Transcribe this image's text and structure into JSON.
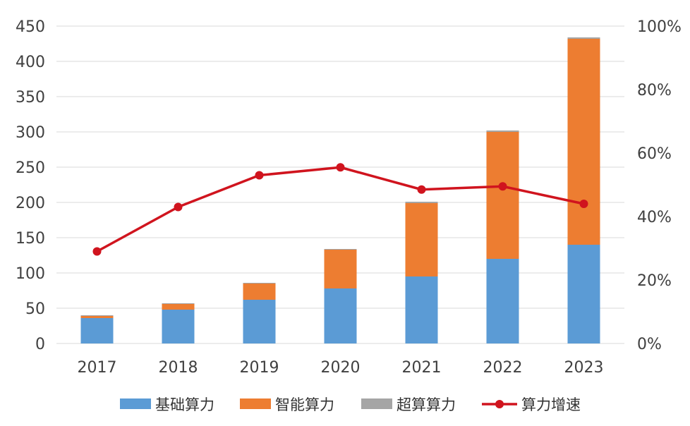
{
  "chart_data": {
    "type": "bar",
    "stacked": true,
    "categories": [
      "2017",
      "2018",
      "2019",
      "2020",
      "2021",
      "2022",
      "2023"
    ],
    "series": [
      {
        "name": "基础算力",
        "kind": "bar",
        "axis": "left",
        "color": "#5b9bd5",
        "values": [
          36,
          48,
          62,
          78,
          95,
          120,
          140
        ]
      },
      {
        "name": "智能算力",
        "kind": "bar",
        "axis": "left",
        "color": "#ed7d31",
        "values": [
          3,
          8,
          23,
          55,
          104,
          180,
          292
        ]
      },
      {
        "name": "超算算力",
        "kind": "bar",
        "axis": "left",
        "color": "#a5a5a5",
        "values": [
          1,
          1,
          1,
          1,
          2,
          2,
          2
        ]
      },
      {
        "name": "算力增速",
        "kind": "line",
        "axis": "right",
        "color": "#d0141e",
        "values": [
          29,
          43,
          53,
          55.5,
          48.5,
          49.5,
          44
        ]
      }
    ],
    "yaxis_left": {
      "min": 0,
      "max": 450,
      "ticks": [
        "0",
        "50",
        "100",
        "150",
        "200",
        "250",
        "300",
        "350",
        "400",
        "450"
      ]
    },
    "yaxis_right": {
      "min": 0,
      "max": 100,
      "ticks": [
        "0%",
        "20%",
        "40%",
        "60%",
        "80%",
        "100%"
      ]
    },
    "grid": true,
    "legend_position": "bottom"
  }
}
